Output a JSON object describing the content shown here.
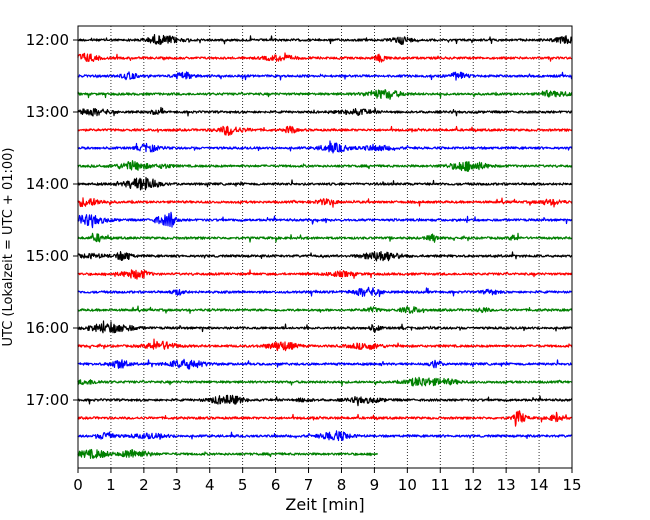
{
  "chart_data": {
    "type": "line",
    "title": "",
    "xlabel": "Zeit  [min]",
    "ylabel": "UTC (Lokalzeit = UTC + 01:00)",
    "xlim": [
      0,
      15
    ],
    "x_ticks": [
      "0",
      "1",
      "2",
      "3",
      "4",
      "5",
      "6",
      "7",
      "8",
      "9",
      "10",
      "11",
      "12",
      "13",
      "14",
      "15"
    ],
    "y_tick_labels": [
      "12:00",
      "13:00",
      "14:00",
      "15:00",
      "16:00",
      "17:00"
    ],
    "grid": "vertical dotted",
    "colors": [
      "#000000",
      "#ff0000",
      "#0000ff",
      "#008000"
    ],
    "traces": [
      {
        "start": "12:00",
        "end_min": 15
      },
      {
        "start": "12:15",
        "end_min": 15
      },
      {
        "start": "12:30",
        "end_min": 15
      },
      {
        "start": "12:45",
        "end_min": 15
      },
      {
        "start": "13:00",
        "end_min": 15
      },
      {
        "start": "13:15",
        "end_min": 15
      },
      {
        "start": "13:30",
        "end_min": 15
      },
      {
        "start": "13:45",
        "end_min": 15
      },
      {
        "start": "14:00",
        "end_min": 15
      },
      {
        "start": "14:15",
        "end_min": 15
      },
      {
        "start": "14:30",
        "end_min": 15
      },
      {
        "start": "14:45",
        "end_min": 15
      },
      {
        "start": "15:00",
        "end_min": 15
      },
      {
        "start": "15:15",
        "end_min": 15
      },
      {
        "start": "15:30",
        "end_min": 15
      },
      {
        "start": "15:45",
        "end_min": 15
      },
      {
        "start": "16:00",
        "end_min": 15
      },
      {
        "start": "16:15",
        "end_min": 15
      },
      {
        "start": "16:30",
        "end_min": 15
      },
      {
        "start": "16:45",
        "end_min": 15
      },
      {
        "start": "17:00",
        "end_min": 15
      },
      {
        "start": "17:15",
        "end_min": 15
      },
      {
        "start": "17:30",
        "end_min": 15
      },
      {
        "start": "17:45",
        "end_min": 9.1
      }
    ]
  }
}
